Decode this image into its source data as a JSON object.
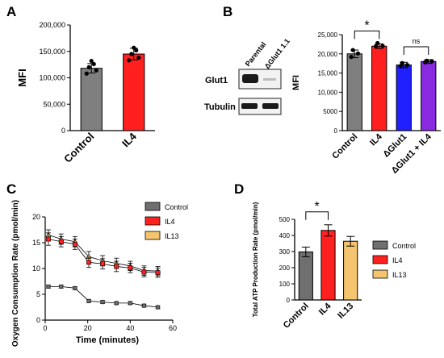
{
  "panels": {
    "A": "A",
    "B": "B",
    "C": "C",
    "D": "D"
  },
  "blot": {
    "lanes": [
      "Parental",
      "ΔGlut1 1.1"
    ],
    "rows": [
      "Glut1",
      "Tubulin"
    ]
  },
  "chart_data": [
    {
      "id": "A",
      "type": "bar",
      "categories": [
        "Control",
        "IL4"
      ],
      "values": [
        118000,
        145000
      ],
      "errors": [
        9000,
        11000
      ],
      "points": [
        [
          108000,
          114000,
          120000,
          126000,
          132000
        ],
        [
          133000,
          138000,
          145000,
          152000,
          157000
        ]
      ],
      "colors": [
        "#7f7f7f",
        "#ff1f1f"
      ],
      "xlabel": "",
      "ylabel": "MFI",
      "ylim": [
        0,
        200000
      ],
      "yticks": [
        "0",
        "50,000",
        "100,000",
        "150,000",
        "200,000"
      ],
      "ytick_values": [
        0,
        50000,
        100000,
        150000,
        200000
      ]
    },
    {
      "id": "B",
      "type": "bar",
      "categories": [
        "Control",
        "IL4",
        "ΔGlut1",
        "ΔGlut1 + IL4"
      ],
      "values": [
        20000,
        22000,
        17100,
        18000
      ],
      "errors": [
        1000,
        600,
        700,
        500
      ],
      "points": [
        [
          19200,
          20100,
          21000
        ],
        [
          22000,
          22100,
          22800
        ],
        [
          16800,
          17100,
          17600
        ],
        [
          17800,
          18100,
          18200
        ]
      ],
      "colors": [
        "#7f7f7f",
        "#ff1f1f",
        "#1f1fff",
        "#8a2be2"
      ],
      "xlabel": "",
      "ylabel": "MFI",
      "ylim": [
        0,
        25000
      ],
      "yticks": [
        "0",
        "5000",
        "10,000",
        "15,000",
        "20,000",
        "25,000"
      ],
      "ytick_values": [
        0,
        5000,
        10000,
        15000,
        20000,
        25000
      ],
      "significance": [
        {
          "from": 0,
          "to": 1,
          "label": "*"
        },
        {
          "from": 2,
          "to": 3,
          "label": "ns"
        }
      ]
    },
    {
      "id": "C",
      "type": "line",
      "xlabel": "Time (minutes)",
      "ylabel": "Oxygen Consumption Rate (pmol/min)",
      "xlim": [
        0,
        60
      ],
      "ylim": [
        0,
        20
      ],
      "xticks": [
        "0",
        "20",
        "40",
        "60"
      ],
      "xtick_values": [
        0,
        20,
        40,
        60
      ],
      "yticks": [
        "0",
        "5",
        "10",
        "15",
        "20"
      ],
      "ytick_values": [
        0,
        5,
        10,
        15,
        20
      ],
      "series": [
        {
          "name": "Control",
          "color": "#6f6f6f",
          "x": [
            1.5,
            7.5,
            14,
            20.5,
            27,
            33.5,
            40,
            46.5,
            53
          ],
          "y": [
            6.5,
            6.5,
            6.2,
            3.7,
            3.5,
            3.3,
            3.3,
            2.8,
            2.5
          ],
          "err": [
            0.3,
            0.3,
            0.3,
            0.3,
            0.3,
            0.3,
            0.3,
            0.3,
            0.3
          ]
        },
        {
          "name": "IL4",
          "color": "#ff2020",
          "x": [
            1.5,
            7.5,
            14,
            20.5,
            27,
            33.5,
            40,
            46.5,
            53
          ],
          "y": [
            15.7,
            15.2,
            14.7,
            11.2,
            10.9,
            10.4,
            10.1,
            9.3,
            9.2
          ],
          "err": [
            1.2,
            1.0,
            1.0,
            1.0,
            1.0,
            1.0,
            0.9,
            0.9,
            0.9
          ]
        },
        {
          "name": "IL13",
          "color": "#f4c46e",
          "x": [
            1.5,
            7.5,
            14,
            20.5,
            27,
            33.5,
            40,
            46.5,
            53
          ],
          "y": [
            16.5,
            15.7,
            15.2,
            12.3,
            11.5,
            11.0,
            10.5,
            9.6,
            9.5
          ],
          "err": [
            1.0,
            1.0,
            1.0,
            1.0,
            1.0,
            1.0,
            0.9,
            0.9,
            0.9
          ]
        }
      ]
    },
    {
      "id": "D",
      "type": "bar",
      "categories": [
        "Control",
        "IL4",
        "IL13"
      ],
      "values": [
        298,
        431,
        364
      ],
      "errors": [
        30,
        35,
        30
      ],
      "colors": [
        "#6f6f6f",
        "#ff2020",
        "#f4c46e"
      ],
      "xlabel": "",
      "ylabel": "Total ATP Production Rate (pmol/min)",
      "ylim": [
        0,
        500
      ],
      "yticks": [
        "0",
        "100",
        "200",
        "300",
        "400",
        "500"
      ],
      "ytick_values": [
        0,
        100,
        200,
        300,
        400,
        500
      ],
      "legend": [
        "Control",
        "IL4",
        "IL13"
      ],
      "significance": [
        {
          "from": 0,
          "to": 1,
          "label": "*"
        }
      ]
    }
  ]
}
